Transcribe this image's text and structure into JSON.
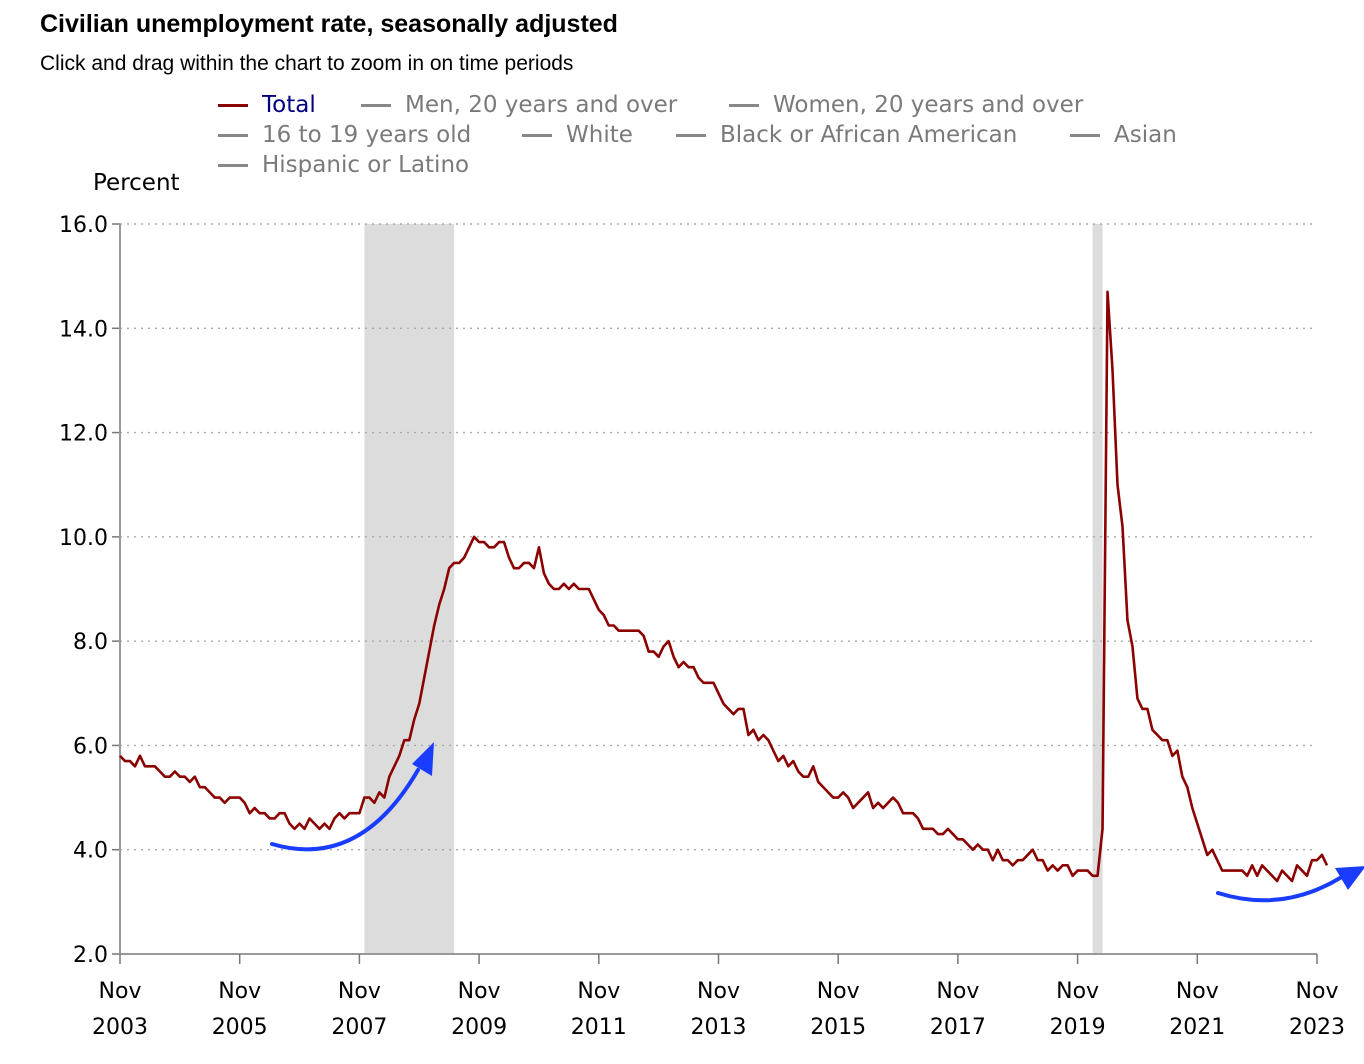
{
  "title": "Civilian unemployment rate, seasonally adjusted",
  "subtitle": "Click and drag within the chart to zoom in on time periods",
  "legend": [
    {
      "label": "Total",
      "active": true
    },
    {
      "label": "Men, 20 years and over",
      "active": false
    },
    {
      "label": "Women, 20 years and over",
      "active": false
    },
    {
      "label": "16 to 19 years old",
      "active": false
    },
    {
      "label": "White",
      "active": false
    },
    {
      "label": "Black or African American",
      "active": false
    },
    {
      "label": "Asian",
      "active": false
    },
    {
      "label": "Hispanic or Latino",
      "active": false
    }
  ],
  "colors": {
    "series": "#8b0000",
    "recession": "#dcdcdc",
    "annotation_arrow": "#1a3cff",
    "active_legend_text": "#000080",
    "inactive_legend": "#7a7a7a"
  },
  "chart_data": {
    "type": "line",
    "ylabel": "Percent",
    "ylim": [
      2.0,
      16.0
    ],
    "yticks": [
      "2.0",
      "4.0",
      "6.0",
      "8.0",
      "10.0",
      "12.0",
      "14.0",
      "16.0"
    ],
    "xlim": [
      "2003-11",
      "2023-11"
    ],
    "xticks": [
      {
        "month": "Nov",
        "year": "2003"
      },
      {
        "month": "Nov",
        "year": "2005"
      },
      {
        "month": "Nov",
        "year": "2007"
      },
      {
        "month": "Nov",
        "year": "2009"
      },
      {
        "month": "Nov",
        "year": "2011"
      },
      {
        "month": "Nov",
        "year": "2013"
      },
      {
        "month": "Nov",
        "year": "2015"
      },
      {
        "month": "Nov",
        "year": "2017"
      },
      {
        "month": "Nov",
        "year": "2019"
      },
      {
        "month": "Nov",
        "year": "2021"
      },
      {
        "month": "Nov",
        "year": "2023"
      }
    ],
    "grid": "horizontal dotted",
    "recessions": [
      {
        "start": "2007-12",
        "end": "2009-06"
      },
      {
        "start": "2020-02",
        "end": "2020-04"
      }
    ],
    "annotations": [
      {
        "type": "curved-arrow",
        "from": "2006-06",
        "to": "2009-01",
        "note": "rising from a trough"
      },
      {
        "type": "curved-arrow",
        "from": "2022-06",
        "to": "2024-01",
        "note": "rising from a trough"
      }
    ],
    "series": [
      {
        "name": "Total",
        "start": "2003-11",
        "values": [
          5.8,
          5.7,
          5.7,
          5.6,
          5.8,
          5.6,
          5.6,
          5.6,
          5.5,
          5.4,
          5.4,
          5.5,
          5.4,
          5.4,
          5.3,
          5.4,
          5.2,
          5.2,
          5.1,
          5.0,
          5.0,
          4.9,
          5.0,
          5.0,
          5.0,
          4.9,
          4.7,
          4.8,
          4.7,
          4.7,
          4.6,
          4.6,
          4.7,
          4.7,
          4.5,
          4.4,
          4.5,
          4.4,
          4.6,
          4.5,
          4.4,
          4.5,
          4.4,
          4.6,
          4.7,
          4.6,
          4.7,
          4.7,
          4.7,
          5.0,
          5.0,
          4.9,
          5.1,
          5.0,
          5.4,
          5.6,
          5.8,
          6.1,
          6.1,
          6.5,
          6.8,
          7.3,
          7.8,
          8.3,
          8.7,
          9.0,
          9.4,
          9.5,
          9.5,
          9.6,
          9.8,
          10.0,
          9.9,
          9.9,
          9.8,
          9.8,
          9.9,
          9.9,
          9.6,
          9.4,
          9.4,
          9.5,
          9.5,
          9.4,
          9.8,
          9.3,
          9.1,
          9.0,
          9.0,
          9.1,
          9.0,
          9.1,
          9.0,
          9.0,
          9.0,
          8.8,
          8.6,
          8.5,
          8.3,
          8.3,
          8.2,
          8.2,
          8.2,
          8.2,
          8.2,
          8.1,
          7.8,
          7.8,
          7.7,
          7.9,
          8.0,
          7.7,
          7.5,
          7.6,
          7.5,
          7.5,
          7.3,
          7.2,
          7.2,
          7.2,
          7.0,
          6.8,
          6.7,
          6.6,
          6.7,
          6.7,
          6.2,
          6.3,
          6.1,
          6.2,
          6.1,
          5.9,
          5.7,
          5.8,
          5.6,
          5.7,
          5.5,
          5.4,
          5.4,
          5.6,
          5.3,
          5.2,
          5.1,
          5.0,
          5.0,
          5.1,
          5.0,
          4.8,
          4.9,
          5.0,
          5.1,
          4.8,
          4.9,
          4.8,
          4.9,
          5.0,
          4.9,
          4.7,
          4.7,
          4.7,
          4.6,
          4.4,
          4.4,
          4.4,
          4.3,
          4.3,
          4.4,
          4.3,
          4.2,
          4.2,
          4.1,
          4.0,
          4.1,
          4.0,
          4.0,
          3.8,
          4.0,
          3.8,
          3.8,
          3.7,
          3.8,
          3.8,
          3.9,
          4.0,
          3.8,
          3.8,
          3.6,
          3.7,
          3.6,
          3.7,
          3.7,
          3.5,
          3.6,
          3.6,
          3.6,
          3.5,
          3.5,
          4.4,
          14.7,
          13.2,
          11.0,
          10.2,
          8.4,
          7.9,
          6.9,
          6.7,
          6.7,
          6.3,
          6.2,
          6.1,
          6.1,
          5.8,
          5.9,
          5.4,
          5.2,
          4.8,
          4.5,
          4.2,
          3.9,
          4.0,
          3.8,
          3.6,
          3.6,
          3.6,
          3.6,
          3.6,
          3.5,
          3.7,
          3.5,
          3.7,
          3.6,
          3.5,
          3.4,
          3.6,
          3.5,
          3.4,
          3.7,
          3.6,
          3.5,
          3.8,
          3.8,
          3.9,
          3.7
        ]
      }
    ]
  }
}
